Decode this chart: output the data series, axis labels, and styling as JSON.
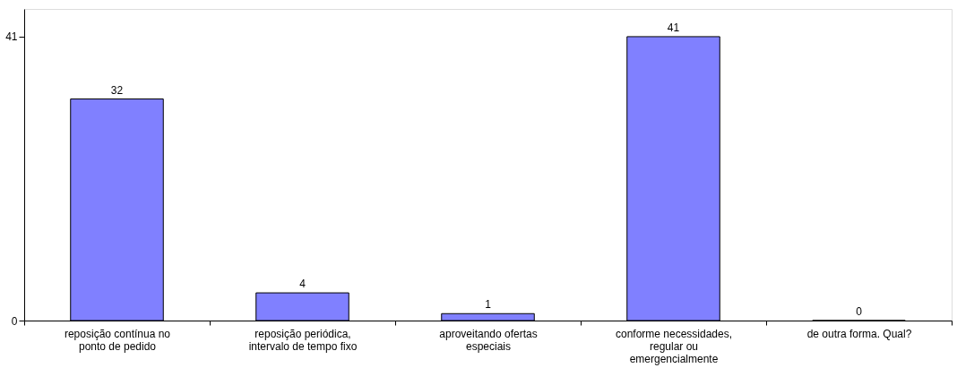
{
  "chart_data": {
    "type": "bar",
    "categories": [
      "reposição contínua no ponto de pedido",
      "reposição periódica, intervalo de tempo fixo",
      "aproveitando ofertas especiais",
      "conforme necessidades, regular ou emergencialmente",
      "de outra forma. Qual?"
    ],
    "values": [
      32,
      4,
      1,
      41,
      0
    ],
    "color": "#8080ff",
    "ylim": [
      0,
      45
    ],
    "yticks": [
      0,
      41
    ],
    "data_labels": true,
    "grid": false
  }
}
